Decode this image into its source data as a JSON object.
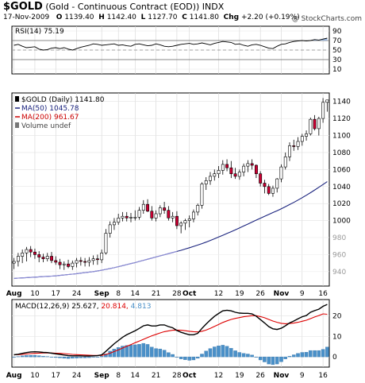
{
  "header": {
    "symbol": "$GOLD",
    "description": "(Gold - Continuous Contract (EOD))",
    "exchange": "INDX",
    "date": "17-Nov-2009",
    "open_label": "O",
    "open": "1139.40",
    "high_label": "H",
    "high": "1142.40",
    "low_label": "L",
    "low": "1127.70",
    "close_label": "C",
    "close": "1141.80",
    "chg_label": "Chg",
    "chg": "+2.20 (+0.19%)",
    "attribution": "@ StockCharts.com"
  },
  "colors": {
    "up": "#ffffff",
    "down": "#cc0033",
    "ma50": "#1a237e",
    "ma200": "#cc0000",
    "macd": "#000000",
    "signal": "#dd0000",
    "hist": "#4a90c8"
  },
  "chart_data": [
    {
      "type": "line",
      "panel": "RSI",
      "legend": "RSI(14) 75.19",
      "yticks": [
        "90",
        "70",
        "50",
        "30",
        "10"
      ],
      "ylim": [
        0,
        100
      ],
      "reference_lines": [
        70,
        30
      ],
      "values": [
        60,
        62,
        58,
        55,
        56,
        57,
        52,
        50,
        51,
        54,
        55,
        53,
        55,
        52,
        50,
        53,
        56,
        58,
        60,
        63,
        62,
        60,
        61,
        62,
        63,
        60,
        61,
        59,
        58,
        62,
        63,
        61,
        59,
        60,
        63,
        61,
        58,
        57,
        58,
        60,
        62,
        63,
        64,
        62,
        63,
        65,
        63,
        61,
        64,
        66,
        68,
        67,
        66,
        62,
        63,
        60,
        58,
        61,
        62,
        60,
        57,
        54,
        53,
        58,
        62,
        63,
        66,
        68,
        69,
        70,
        69,
        70,
        72,
        71,
        73,
        75
      ]
    },
    {
      "type": "candlestick",
      "panel": "Price",
      "legend": [
        "$GOLD (Daily) 1141.80",
        "MA(50) 1045.78",
        "MA(200) 961.67",
        "Volume undef"
      ],
      "yticks_right": [
        "1140",
        "1120",
        "1100",
        "1080",
        "1060",
        "1040",
        "1020",
        "1000",
        "980",
        "960",
        "940"
      ],
      "yticks_gray": [
        "980",
        "960",
        "940"
      ],
      "ylim": [
        923,
        1150
      ],
      "dates": [
        "Aug 3",
        "Aug 4",
        "Aug 5",
        "Aug 6",
        "Aug 7",
        "Aug 10",
        "Aug 11",
        "Aug 12",
        "Aug 13",
        "Aug 14",
        "Aug 17",
        "Aug 18",
        "Aug 19",
        "Aug 20",
        "Aug 21",
        "Aug 24",
        "Aug 25",
        "Aug 26",
        "Aug 27",
        "Aug 28",
        "Aug 31",
        "Sep 1",
        "Sep 2",
        "Sep 3",
        "Sep 4",
        "Sep 8",
        "Sep 9",
        "Sep 10",
        "Sep 11",
        "Sep 14",
        "Sep 15",
        "Sep 16",
        "Sep 17",
        "Sep 18",
        "Sep 21",
        "Sep 22",
        "Sep 23",
        "Sep 24",
        "Sep 25",
        "Sep 28",
        "Sep 29",
        "Sep 30",
        "Oct 1",
        "Oct 2",
        "Oct 5",
        "Oct 6",
        "Oct 7",
        "Oct 8",
        "Oct 9",
        "Oct 12",
        "Oct 13",
        "Oct 14",
        "Oct 15",
        "Oct 16",
        "Oct 19",
        "Oct 20",
        "Oct 21",
        "Oct 22",
        "Oct 23",
        "Oct 26",
        "Oct 27",
        "Oct 28",
        "Oct 29",
        "Oct 30",
        "Nov 2",
        "Nov 3",
        "Nov 4",
        "Nov 5",
        "Nov 6",
        "Nov 9",
        "Nov 10",
        "Nov 11",
        "Nov 12",
        "Nov 13",
        "Nov 16",
        "Nov 17"
      ],
      "open": [
        950,
        952,
        958,
        962,
        966,
        963,
        960,
        957,
        955,
        958,
        953,
        951,
        948,
        949,
        946,
        950,
        953,
        952,
        951,
        953,
        955,
        954,
        962,
        985,
        995,
        998,
        1003,
        1005,
        1003,
        1004,
        1004,
        1012,
        1019,
        1011,
        1003,
        1008,
        1015,
        1012,
        1003,
        1005,
        994,
        997,
        1000,
        1002,
        1010,
        1018,
        1043,
        1047,
        1052,
        1055,
        1059,
        1066,
        1062,
        1055,
        1052,
        1057,
        1064,
        1067,
        1065,
        1055,
        1044,
        1040,
        1032,
        1038,
        1049,
        1063,
        1075,
        1088,
        1087,
        1093,
        1099,
        1102,
        1119,
        1108,
        1120,
        1139
      ],
      "high": [
        956,
        962,
        966,
        969,
        970,
        967,
        964,
        961,
        962,
        963,
        958,
        955,
        952,
        954,
        953,
        956,
        957,
        956,
        957,
        959,
        960,
        966,
        990,
        999,
        1003,
        1008,
        1010,
        1010,
        1009,
        1012,
        1016,
        1024,
        1025,
        1017,
        1012,
        1018,
        1022,
        1017,
        1010,
        1011,
        999,
        1002,
        1006,
        1013,
        1020,
        1045,
        1051,
        1057,
        1060,
        1064,
        1071,
        1072,
        1070,
        1062,
        1060,
        1067,
        1071,
        1072,
        1066,
        1058,
        1048,
        1043,
        1041,
        1050,
        1066,
        1080,
        1092,
        1095,
        1098,
        1102,
        1106,
        1121,
        1124,
        1122,
        1144,
        1142
      ],
      "low": [
        943,
        946,
        950,
        952,
        957,
        955,
        951,
        951,
        952,
        950,
        948,
        943,
        942,
        944,
        942,
        945,
        947,
        946,
        946,
        948,
        948,
        950,
        960,
        980,
        989,
        995,
        999,
        999,
        998,
        1000,
        1001,
        1008,
        1010,
        1000,
        999,
        1004,
        1008,
        1000,
        998,
        990,
        985,
        989,
        992,
        998,
        1006,
        1014,
        1036,
        1042,
        1047,
        1050,
        1054,
        1058,
        1050,
        1049,
        1048,
        1052,
        1057,
        1060,
        1050,
        1040,
        1032,
        1030,
        1028,
        1033,
        1045,
        1060,
        1070,
        1082,
        1083,
        1088,
        1094,
        1100,
        1106,
        1100,
        1115,
        1128
      ],
      "close": [
        952,
        958,
        962,
        966,
        963,
        960,
        957,
        955,
        958,
        953,
        951,
        948,
        949,
        946,
        950,
        953,
        952,
        951,
        953,
        955,
        954,
        962,
        985,
        995,
        998,
        1003,
        1005,
        1003,
        1004,
        1004,
        1012,
        1019,
        1011,
        1003,
        1008,
        1015,
        1012,
        1003,
        1005,
        994,
        997,
        1000,
        1002,
        1010,
        1018,
        1043,
        1047,
        1052,
        1055,
        1059,
        1066,
        1062,
        1055,
        1052,
        1057,
        1064,
        1067,
        1065,
        1055,
        1044,
        1040,
        1032,
        1038,
        1049,
        1063,
        1075,
        1088,
        1087,
        1093,
        1099,
        1102,
        1119,
        1108,
        1120,
        1139,
        1141.8
      ],
      "ma50": [
        932,
        932.3,
        932.6,
        932.9,
        933.2,
        933.5,
        933.8,
        934.1,
        934.4,
        934.7,
        935,
        935.5,
        936,
        936.5,
        937,
        937.6,
        938.2,
        938.8,
        939.4,
        940,
        940.8,
        941.6,
        942.6,
        943.6,
        944.6,
        945.8,
        947,
        948.2,
        949.4,
        950.6,
        952,
        953.3,
        954.6,
        955.9,
        957.2,
        958.5,
        959.8,
        961.1,
        962.4,
        963.7,
        965,
        966.5,
        968,
        969.6,
        971.2,
        972.9,
        974.7,
        976.6,
        978.6,
        980.6,
        982.7,
        984.8,
        986.9,
        989.1,
        991.3,
        993.6,
        995.9,
        998.2,
        1000.5,
        1002.8,
        1005,
        1007.2,
        1009.4,
        1011.6,
        1013.9,
        1016.3,
        1018.8,
        1021.4,
        1024.1,
        1026.9,
        1029.8,
        1032.8,
        1035.9,
        1039.1,
        1042.4,
        1045.78
      ]
    },
    {
      "type": "line",
      "panel": "MACD",
      "legend": [
        "MACD(12,26,9)",
        "25.627",
        "20.814",
        "4.813"
      ],
      "yticks": [
        "20",
        "10",
        "0"
      ],
      "ylim": [
        -5,
        28
      ],
      "macd": [
        1,
        1.3,
        1.7,
        2.1,
        2.4,
        2.5,
        2.4,
        2.2,
        2.1,
        1.8,
        1.5,
        1.2,
        0.9,
        0.6,
        0.5,
        0.5,
        0.5,
        0.4,
        0.4,
        0.5,
        0.6,
        1,
        2.7,
        4.6,
        6.4,
        8,
        9.6,
        10.8,
        11.8,
        12.8,
        13.9,
        15.2,
        15.6,
        15.1,
        15.1,
        15.6,
        15.6,
        14.8,
        14.2,
        12.9,
        12,
        11.4,
        10.8,
        10.8,
        11.5,
        13.9,
        16,
        18,
        19.8,
        21.2,
        22.5,
        22.8,
        22.5,
        21.8,
        21.4,
        21.3,
        21.3,
        21,
        19.9,
        18.2,
        16.6,
        14.8,
        13.7,
        13.4,
        14,
        15.2,
        16.6,
        17.5,
        18.6,
        19.6,
        20.2,
        21.8,
        22.6,
        23.3,
        24.7,
        25.627
      ],
      "signal": [
        1,
        1.1,
        1.2,
        1.4,
        1.6,
        1.7,
        1.8,
        1.9,
        1.9,
        1.9,
        1.8,
        1.7,
        1.6,
        1.4,
        1.2,
        1.1,
        1,
        0.9,
        0.8,
        0.7,
        0.7,
        0.7,
        1.2,
        1.8,
        2.6,
        3.4,
        4.3,
        5.2,
        6,
        6.9,
        7.7,
        8.6,
        9.5,
        10.3,
        11,
        11.7,
        12.3,
        12.7,
        13,
        13.1,
        13,
        12.8,
        12.5,
        12.3,
        12.2,
        12.5,
        13.1,
        13.9,
        14.9,
        15.8,
        16.8,
        17.6,
        18.3,
        18.8,
        19.2,
        19.6,
        19.9,
        20.1,
        20.1,
        19.7,
        19.1,
        18.3,
        17.5,
        16.9,
        16.4,
        16.2,
        16.3,
        16.5,
        16.9,
        17.4,
        17.9,
        18.7,
        19.5,
        20.2,
        21,
        20.814
      ],
      "histogram": [
        0,
        0.2,
        0.5,
        0.7,
        0.8,
        0.8,
        0.6,
        0.3,
        0.2,
        -0.1,
        -0.3,
        -0.5,
        -0.7,
        -0.8,
        -0.7,
        -0.6,
        -0.5,
        -0.5,
        -0.4,
        -0.2,
        -0.1,
        0.3,
        1.5,
        2.8,
        3.8,
        4.6,
        5.3,
        5.6,
        5.8,
        5.9,
        6.2,
        6.6,
        6.1,
        4.8,
        4.1,
        3.9,
        3.3,
        2.1,
        1.2,
        -0.2,
        -1,
        -1.4,
        -1.7,
        -1.5,
        -0.7,
        1.4,
        2.9,
        4.1,
        4.9,
        5.4,
        5.7,
        5.2,
        4.2,
        3,
        2.2,
        1.7,
        1.4,
        0.9,
        -0.2,
        -1.5,
        -2.5,
        -3.5,
        -3.8,
        -3.5,
        -2.4,
        -1,
        0.3,
        1,
        1.7,
        2.2,
        2.3,
        3.1,
        3.1,
        3.1,
        3.7,
        4.813
      ]
    }
  ],
  "xaxis": {
    "labels": [
      {
        "text": "Aug",
        "i": 0,
        "bold": true
      },
      {
        "text": "10",
        "i": 5,
        "bold": false
      },
      {
        "text": "17",
        "i": 10,
        "bold": false
      },
      {
        "text": "24",
        "i": 15,
        "bold": false
      },
      {
        "text": "Sep",
        "i": 21,
        "bold": true
      },
      {
        "text": "8",
        "i": 25,
        "bold": false
      },
      {
        "text": "14",
        "i": 29,
        "bold": false
      },
      {
        "text": "21",
        "i": 34,
        "bold": false
      },
      {
        "text": "28",
        "i": 39,
        "bold": false
      },
      {
        "text": "Oct",
        "i": 42,
        "bold": true
      },
      {
        "text": "12",
        "i": 49,
        "bold": false
      },
      {
        "text": "19",
        "i": 54,
        "bold": false
      },
      {
        "text": "26",
        "i": 59,
        "bold": false
      },
      {
        "text": "Nov",
        "i": 64,
        "bold": true
      },
      {
        "text": "9",
        "i": 69,
        "bold": false
      },
      {
        "text": "16",
        "i": 74,
        "bold": false
      }
    ]
  }
}
